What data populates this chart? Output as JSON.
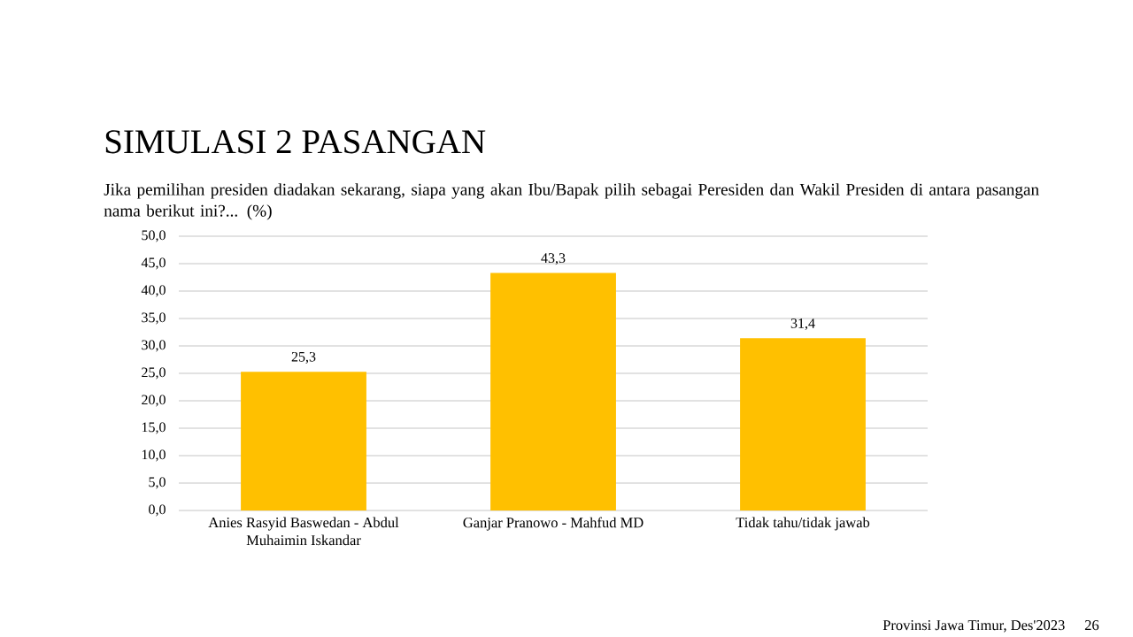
{
  "chart_data": {
    "type": "bar",
    "title": "SIMULASI 2 PASANGAN",
    "subtitle": "Jika pemilihan presiden diadakan sekarang, siapa yang akan Ibu/Bapak pilih sebagai Peresiden dan Wakil Presiden di antara pasangan nama berikut ini?... (%)",
    "categories": [
      "Anies Rasyid Baswedan - Abdul Muhaimin Iskandar",
      "Ganjar Pranowo - Mahfud MD",
      "Tidak tahu/tidak jawab"
    ],
    "values": [
      25.3,
      43.3,
      31.4
    ],
    "value_labels": [
      "25,3",
      "43,3",
      "31,4"
    ],
    "color": "#ffc000",
    "ylim": [
      0,
      50
    ],
    "yticks": [
      {
        "value": 0,
        "label": "0,0"
      },
      {
        "value": 5,
        "label": "5,0"
      },
      {
        "value": 10,
        "label": "10,0"
      },
      {
        "value": 15,
        "label": "15,0"
      },
      {
        "value": 20,
        "label": "20,0"
      },
      {
        "value": 25,
        "label": "25,0"
      },
      {
        "value": 30,
        "label": "30,0"
      },
      {
        "value": 35,
        "label": "35,0"
      },
      {
        "value": 40,
        "label": "40,0"
      },
      {
        "value": 45,
        "label": "45,0"
      },
      {
        "value": 50,
        "label": "50,0"
      }
    ],
    "grid": "y",
    "annotations": [
      "Provinsi Jawa Timur, Des'2023",
      "26"
    ]
  }
}
